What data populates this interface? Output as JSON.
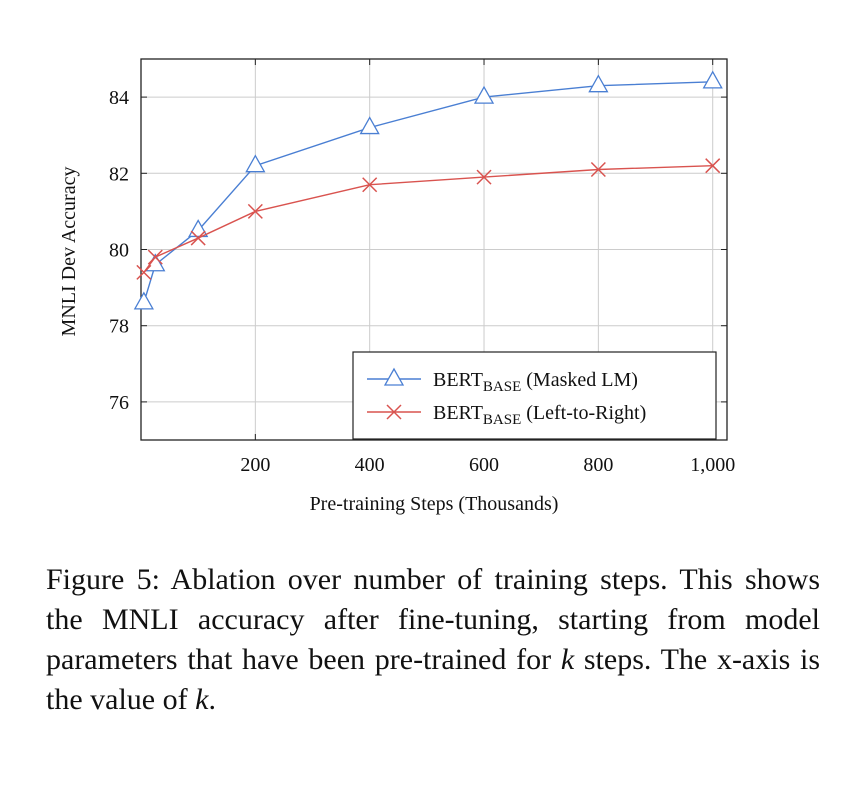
{
  "chart_data": {
    "type": "line",
    "xlabel": "Pre-training Steps (Thousands)",
    "ylabel": "MNLI Dev Accuracy",
    "xlim": [
      0,
      1025
    ],
    "ylim": [
      75,
      85
    ],
    "x_ticks": [
      200,
      400,
      600,
      800,
      1000
    ],
    "x_tick_labels": [
      "200",
      "400",
      "600",
      "800",
      "1,000"
    ],
    "y_ticks": [
      76,
      78,
      80,
      82,
      84
    ],
    "y_tick_labels": [
      "76",
      "78",
      "80",
      "82",
      "84"
    ],
    "grid": true,
    "legend_position": "bottom-right",
    "series": [
      {
        "name_main": "BERT",
        "name_sub": "BASE",
        "name_suffix": " (Masked LM)",
        "marker": "triangle",
        "color": "#4a7fd3",
        "x": [
          5,
          25,
          100,
          200,
          400,
          600,
          800,
          1000
        ],
        "values": [
          78.6,
          79.6,
          80.5,
          82.2,
          83.2,
          84.0,
          84.3,
          84.4
        ]
      },
      {
        "name_main": "BERT",
        "name_sub": "BASE",
        "name_suffix": " (Left-to-Right)",
        "marker": "cross",
        "color": "#d9534f",
        "x": [
          5,
          25,
          100,
          200,
          400,
          600,
          800,
          1000
        ],
        "values": [
          79.4,
          79.8,
          80.3,
          81.0,
          81.7,
          81.9,
          82.1,
          82.2
        ]
      }
    ]
  },
  "caption": {
    "figure_label": "Figure 5:",
    "text_before_k1": " Ablation over number of training steps. This shows the MNLI accuracy after fine-tuning, starting from model parameters that have been pre-trained for ",
    "k1": "k",
    "text_between": " steps. The x-axis is the value of ",
    "k2": "k",
    "text_end": "."
  }
}
